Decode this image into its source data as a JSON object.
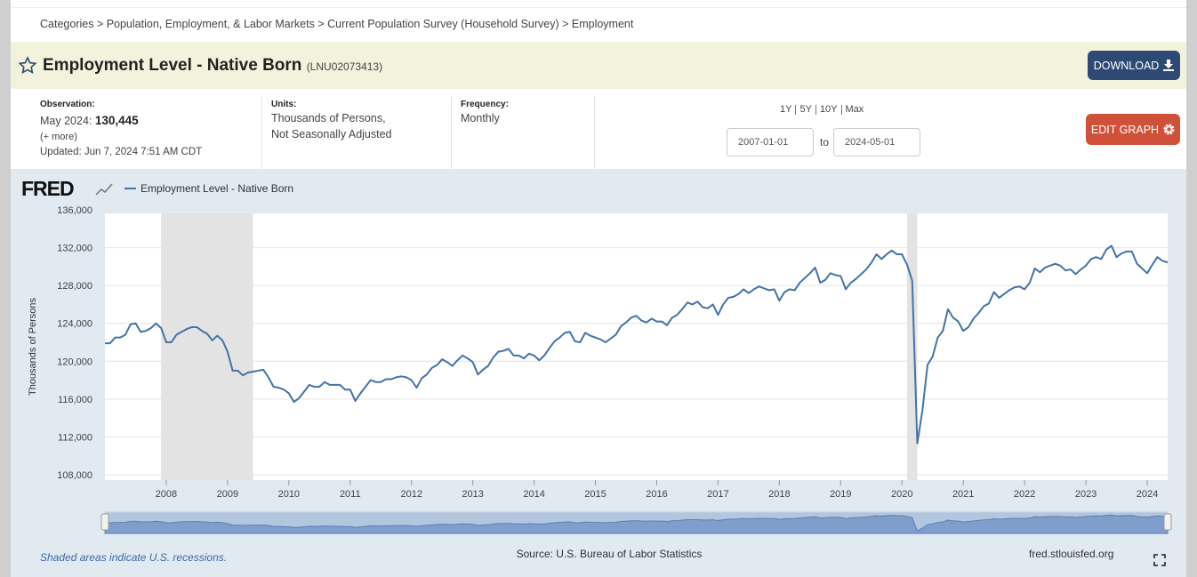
{
  "breadcrumb": "Categories > Population, Employment, & Labor Markets > Current Population Survey (Household Survey) > Employment",
  "header": {
    "title": "Employment Level - Native Born",
    "series_id": "(LNU02073413)",
    "download": "DOWNLOAD"
  },
  "info": {
    "observation_label": "Observation:",
    "observation_date": "May 2024:",
    "observation_value": "130,445",
    "more": "(+ more)",
    "updated": "Updated: Jun 7, 2024 7:51 AM CDT",
    "units_label": "Units:",
    "units": [
      "Thousands of Persons,",
      "Not Seasonally Adjusted"
    ],
    "frequency_label": "Frequency:",
    "frequency": "Monthly",
    "range_links": [
      "1Y",
      "5Y",
      "10Y",
      "Max"
    ],
    "start_date": "2007-01-01",
    "to": "to",
    "end_date": "2024-05-01",
    "edit": "EDIT GRAPH"
  },
  "footer": {
    "recessions_note": "Shaded areas indicate U.S. recessions.",
    "source": "Source: U.S. Bureau of Labor Statistics",
    "site": "fred.stlouisfed.org"
  },
  "chart_data": {
    "type": "line",
    "logo": "FRED",
    "ylabel": "Thousands of Persons",
    "grid": true,
    "xlim": [
      "2007-01",
      "2024-05"
    ],
    "xticks": [
      {
        "value": "2008-01",
        "label": "2008"
      },
      {
        "value": "2009-01",
        "label": "2009"
      },
      {
        "value": "2010-01",
        "label": "2010"
      },
      {
        "value": "2011-01",
        "label": "2011"
      },
      {
        "value": "2012-01",
        "label": "2012"
      },
      {
        "value": "2013-01",
        "label": "2013"
      },
      {
        "value": "2014-01",
        "label": "2014"
      },
      {
        "value": "2015-01",
        "label": "2015"
      },
      {
        "value": "2016-01",
        "label": "2016"
      },
      {
        "value": "2017-01",
        "label": "2017"
      },
      {
        "value": "2018-01",
        "label": "2018"
      },
      {
        "value": "2019-01",
        "label": "2019"
      },
      {
        "value": "2020-01",
        "label": "2020"
      },
      {
        "value": "2021-01",
        "label": "2021"
      },
      {
        "value": "2022-01",
        "label": "2022"
      },
      {
        "value": "2023-01",
        "label": "2023"
      },
      {
        "value": "2024-01",
        "label": "2024"
      }
    ],
    "ylim": [
      108000,
      136000
    ],
    "yticks": [
      {
        "value": 108000,
        "label": "108,000"
      },
      {
        "value": 112000,
        "label": "112,000"
      },
      {
        "value": 116000,
        "label": "116,000"
      },
      {
        "value": 120000,
        "label": "120,000"
      },
      {
        "value": 124000,
        "label": "124,000"
      },
      {
        "value": 128000,
        "label": "128,000"
      },
      {
        "value": 132000,
        "label": "132,000"
      },
      {
        "value": 136000,
        "label": "136,000"
      }
    ],
    "recessions": [
      [
        "2007-12",
        "2009-06"
      ],
      [
        "2020-02",
        "2020-04"
      ]
    ],
    "x": [
      "2007-01",
      "2007-02",
      "2007-03",
      "2007-04",
      "2007-05",
      "2007-06",
      "2007-07",
      "2007-08",
      "2007-09",
      "2007-10",
      "2007-11",
      "2007-12",
      "2008-01",
      "2008-02",
      "2008-03",
      "2008-04",
      "2008-05",
      "2008-06",
      "2008-07",
      "2008-08",
      "2008-09",
      "2008-10",
      "2008-11",
      "2008-12",
      "2009-01",
      "2009-02",
      "2009-03",
      "2009-04",
      "2009-05",
      "2009-06",
      "2009-07",
      "2009-08",
      "2009-09",
      "2009-10",
      "2009-11",
      "2009-12",
      "2010-01",
      "2010-02",
      "2010-03",
      "2010-04",
      "2010-05",
      "2010-06",
      "2010-07",
      "2010-08",
      "2010-09",
      "2010-10",
      "2010-11",
      "2010-12",
      "2011-01",
      "2011-02",
      "2011-03",
      "2011-04",
      "2011-05",
      "2011-06",
      "2011-07",
      "2011-08",
      "2011-09",
      "2011-10",
      "2011-11",
      "2011-12",
      "2012-01",
      "2012-02",
      "2012-03",
      "2012-04",
      "2012-05",
      "2012-06",
      "2012-07",
      "2012-08",
      "2012-09",
      "2012-10",
      "2012-11",
      "2012-12",
      "2013-01",
      "2013-02",
      "2013-03",
      "2013-04",
      "2013-05",
      "2013-06",
      "2013-07",
      "2013-08",
      "2013-09",
      "2013-10",
      "2013-11",
      "2013-12",
      "2014-01",
      "2014-02",
      "2014-03",
      "2014-04",
      "2014-05",
      "2014-06",
      "2014-07",
      "2014-08",
      "2014-09",
      "2014-10",
      "2014-11",
      "2014-12",
      "2015-01",
      "2015-02",
      "2015-03",
      "2015-04",
      "2015-05",
      "2015-06",
      "2015-07",
      "2015-08",
      "2015-09",
      "2015-10",
      "2015-11",
      "2015-12",
      "2016-01",
      "2016-02",
      "2016-03",
      "2016-04",
      "2016-05",
      "2016-06",
      "2016-07",
      "2016-08",
      "2016-09",
      "2016-10",
      "2016-11",
      "2016-12",
      "2017-01",
      "2017-02",
      "2017-03",
      "2017-04",
      "2017-05",
      "2017-06",
      "2017-07",
      "2017-08",
      "2017-09",
      "2017-10",
      "2017-11",
      "2017-12",
      "2018-01",
      "2018-02",
      "2018-03",
      "2018-04",
      "2018-05",
      "2018-06",
      "2018-07",
      "2018-08",
      "2018-09",
      "2018-10",
      "2018-11",
      "2018-12",
      "2019-01",
      "2019-02",
      "2019-03",
      "2019-04",
      "2019-05",
      "2019-06",
      "2019-07",
      "2019-08",
      "2019-09",
      "2019-10",
      "2019-11",
      "2019-12",
      "2020-01",
      "2020-02",
      "2020-03",
      "2020-04",
      "2020-05",
      "2020-06",
      "2020-07",
      "2020-08",
      "2020-09",
      "2020-10",
      "2020-11",
      "2020-12",
      "2021-01",
      "2021-02",
      "2021-03",
      "2021-04",
      "2021-05",
      "2021-06",
      "2021-07",
      "2021-08",
      "2021-09",
      "2021-10",
      "2021-11",
      "2021-12",
      "2022-01",
      "2022-02",
      "2022-03",
      "2022-04",
      "2022-05",
      "2022-06",
      "2022-07",
      "2022-08",
      "2022-09",
      "2022-10",
      "2022-11",
      "2022-12",
      "2023-01",
      "2023-02",
      "2023-03",
      "2023-04",
      "2023-05",
      "2023-06",
      "2023-07",
      "2023-08",
      "2023-09",
      "2023-10",
      "2023-11",
      "2023-12",
      "2024-01",
      "2024-02",
      "2024-03",
      "2024-04",
      "2024-05"
    ],
    "series": [
      {
        "name": "Employment Level - Native Born",
        "color": "#4572a7",
        "values": [
          121900,
          121900,
          122500,
          122500,
          122800,
          123900,
          124000,
          123100,
          123200,
          123500,
          124000,
          123500,
          122000,
          122000,
          122800,
          123100,
          123400,
          123600,
          123600,
          123200,
          122900,
          122200,
          122700,
          122200,
          121000,
          119000,
          119000,
          118500,
          118800,
          118900,
          119000,
          119100,
          118300,
          117300,
          117200,
          117000,
          116600,
          115700,
          116100,
          116800,
          117500,
          117300,
          117300,
          117800,
          117500,
          117500,
          117500,
          117000,
          117000,
          115800,
          116600,
          117300,
          118000,
          117800,
          117800,
          118100,
          118100,
          118300,
          118400,
          118300,
          118000,
          117200,
          118200,
          118600,
          119300,
          119600,
          120200,
          119900,
          119500,
          120100,
          120600,
          120300,
          119900,
          118600,
          119100,
          119500,
          120400,
          121000,
          121100,
          121300,
          120600,
          120600,
          120300,
          120800,
          120600,
          120100,
          120600,
          121400,
          122100,
          122500,
          123000,
          123100,
          122100,
          122000,
          123000,
          122700,
          122500,
          122300,
          122000,
          122400,
          122800,
          123700,
          124100,
          124600,
          124800,
          124300,
          124100,
          124500,
          124200,
          124200,
          123800,
          124600,
          124900,
          125500,
          126200,
          126000,
          126300,
          125700,
          125600,
          126000,
          124900,
          126000,
          126700,
          126800,
          127100,
          127600,
          127200,
          127600,
          127900,
          127700,
          127500,
          127600,
          126400,
          127300,
          127600,
          127500,
          128300,
          128800,
          129300,
          129900,
          128300,
          128600,
          129300,
          129100,
          129000,
          127600,
          128300,
          128700,
          129200,
          129700,
          130400,
          131300,
          130800,
          131300,
          131700,
          131300,
          131300,
          130200,
          128500,
          111300,
          114800,
          119600,
          120500,
          122500,
          123200,
          125500,
          124600,
          124200,
          123200,
          123600,
          124500,
          125100,
          125800,
          126100,
          127300,
          126700,
          127100,
          127500,
          127800,
          127900,
          127600,
          128300,
          129800,
          129400,
          129900,
          130100,
          130300,
          130100,
          129600,
          129700,
          129200,
          129700,
          130100,
          130800,
          131000,
          130800,
          131800,
          132200,
          131000,
          131400,
          131600,
          131600,
          130300,
          129800,
          129300,
          130200,
          131000,
          130600,
          130445
        ]
      }
    ]
  }
}
